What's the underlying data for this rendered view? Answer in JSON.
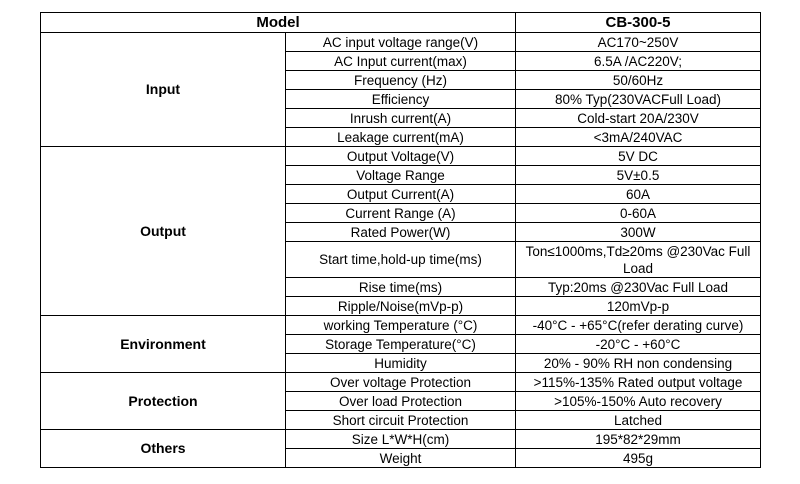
{
  "header": {
    "model_label": "Model",
    "model_value": "CB-300-5"
  },
  "groups": [
    {
      "name": "Input",
      "rows": [
        {
          "param": "AC input voltage range(V)",
          "value": "AC170~250V"
        },
        {
          "param": "AC Input current(max)",
          "value": "6.5A /AC220V;"
        },
        {
          "param": "Frequency (Hz)",
          "value": "50/60Hz"
        },
        {
          "param": "Efficiency",
          "value": "80% Typ(230VACFull Load)"
        },
        {
          "param": "Inrush current(A)",
          "value": "Cold-start 20A/230V"
        },
        {
          "param": "Leakage current(mA)",
          "value": "<3mA/240VAC"
        }
      ]
    },
    {
      "name": "Output",
      "rows": [
        {
          "param": "Output Voltage(V)",
          "value": "5V DC"
        },
        {
          "param": "Voltage Range",
          "value": "5V±0.5"
        },
        {
          "param": "Output Current(A)",
          "value": "60A"
        },
        {
          "param": "Current  Range (A)",
          "value": "0-60A"
        },
        {
          "param": "Rated Power(W)",
          "value": "300W"
        },
        {
          "param": "Start time,hold-up time(ms)",
          "value": "Ton≤1000ms,Td≥20ms @230Vac Full Load"
        },
        {
          "param": "Rise time(ms)",
          "value": "Typ:20ms @230Vac Full Load"
        },
        {
          "param": "Ripple/Noise(mVp-p)",
          "value": "120mVp-p"
        }
      ]
    },
    {
      "name": "Environment",
      "rows": [
        {
          "param": "working Temperature (°C)",
          "value": "-40°C - +65°C(refer derating curve)"
        },
        {
          "param": "Storage Temperature(°C)",
          "value": "-20°C - +60°C"
        },
        {
          "param": "Humidity",
          "value": "20% - 90% RH non condensing"
        }
      ]
    },
    {
      "name": "Protection",
      "rows": [
        {
          "param": "Over voltage Protection",
          "value": ">115%-135% Rated output voltage"
        },
        {
          "param": "Over load Protection",
          "value": ">105%-150% Auto recovery"
        },
        {
          "param": "Short circuit Protection",
          "value": "Latched"
        }
      ]
    },
    {
      "name": "Others",
      "rows": [
        {
          "param": "Size  L*W*H(cm)",
          "value": "195*82*29mm"
        },
        {
          "param": "Weight",
          "value": "495g"
        }
      ]
    }
  ]
}
